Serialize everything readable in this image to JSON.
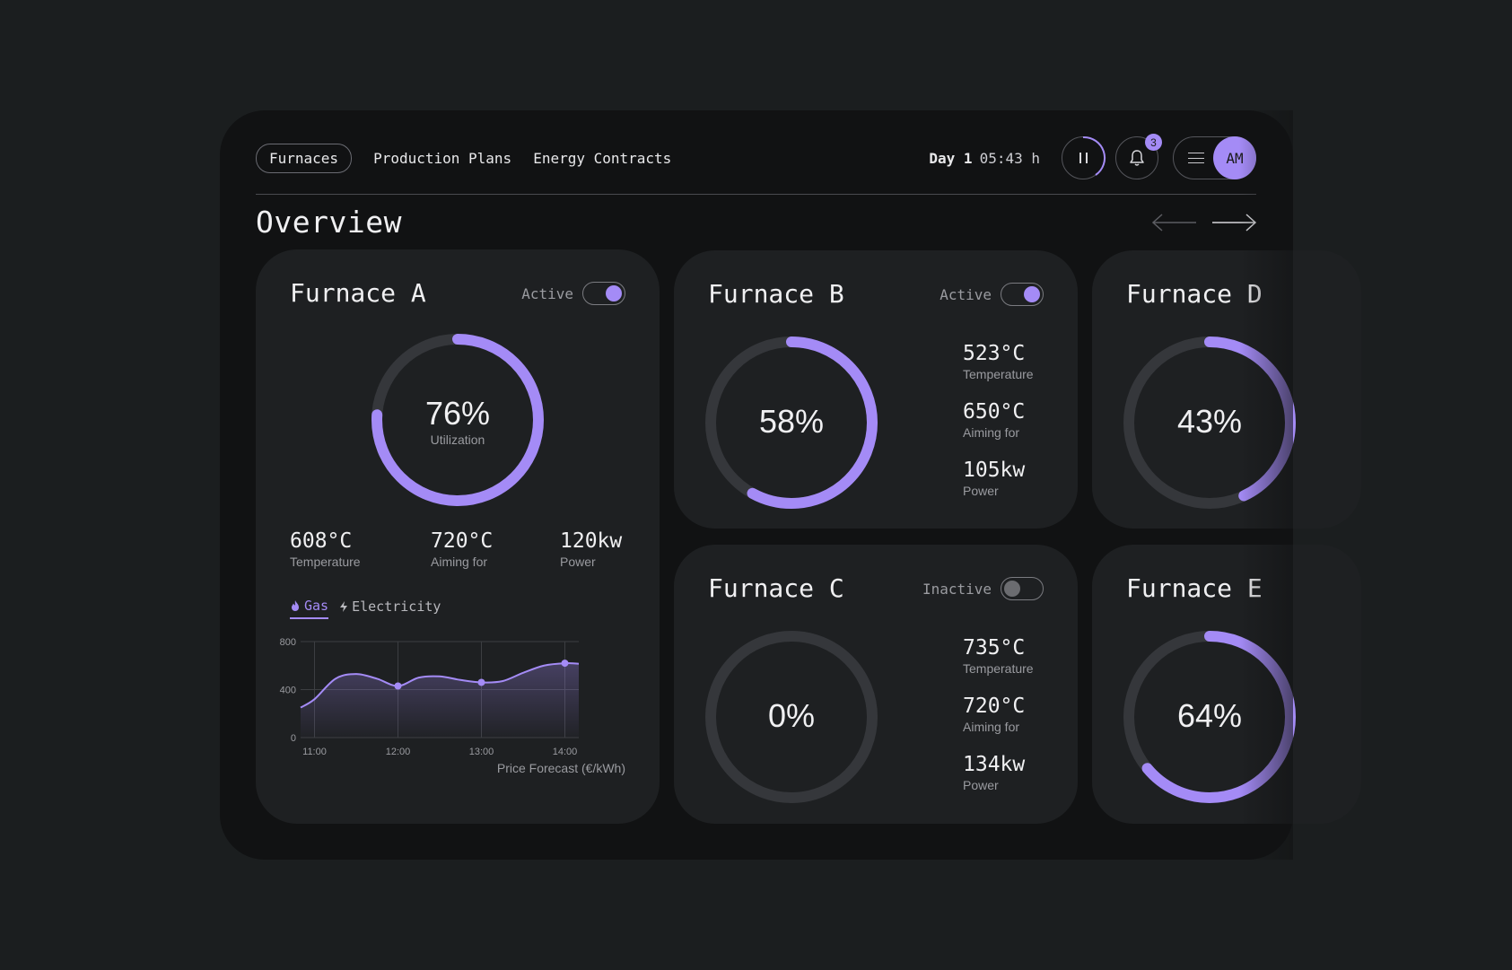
{
  "nav": {
    "tabs": [
      {
        "label": "Furnaces",
        "active": true
      },
      {
        "label": "Production Plans",
        "active": false
      },
      {
        "label": "Energy Contracts",
        "active": false
      }
    ]
  },
  "status": {
    "day": "Day 1",
    "time": "05:43 h",
    "notification_count": "3",
    "avatar_initials": "AM"
  },
  "page": {
    "title": "Overview"
  },
  "colors": {
    "accent": "#a48bf6",
    "track": "#35373b",
    "card": "#1e2022",
    "bg": "#111213"
  },
  "furnaces": [
    {
      "name": "Furnace A",
      "status": "Active",
      "on": true,
      "utilization": 76,
      "utilization_label": "76%",
      "utilization_caption": "Utilization",
      "temperature": "608°C",
      "temperature_label": "Temperature",
      "target": "720°C",
      "target_label": "Aiming for",
      "power": "120kw",
      "power_label": "Power"
    },
    {
      "name": "Furnace B",
      "status": "Active",
      "on": true,
      "utilization": 58,
      "utilization_label": "58%",
      "temperature": "523°C",
      "temperature_label": "Temperature",
      "target": "650°C",
      "target_label": "Aiming for",
      "power": "105kw",
      "power_label": "Power"
    },
    {
      "name": "Furnace C",
      "status": "Inactive",
      "on": false,
      "utilization": 0,
      "utilization_label": "0%",
      "temperature": "735°C",
      "temperature_label": "Temperature",
      "target": "720°C",
      "target_label": "Aiming for",
      "power": "134kw",
      "power_label": "Power"
    },
    {
      "name": "Furnace D",
      "utilization": 43,
      "utilization_label": "43%"
    },
    {
      "name": "Furnace E",
      "utilization": 64,
      "utilization_label": "64%"
    }
  ],
  "energy_tabs": [
    {
      "label": "Gas",
      "icon": "flame-icon",
      "active": true
    },
    {
      "label": "Electricity",
      "icon": "bolt-icon",
      "active": false
    }
  ],
  "chart_data": {
    "type": "area",
    "title": "",
    "xlabel": "Price Forecast (€/kWh)",
    "ylabel": "",
    "x": [
      "10:50",
      "11:00",
      "11:15",
      "11:30",
      "11:45",
      "12:00",
      "12:15",
      "12:30",
      "12:45",
      "13:00",
      "13:15",
      "13:30",
      "13:45",
      "14:00",
      "14:10"
    ],
    "series": [
      {
        "values": [
          250,
          320,
          490,
          530,
          490,
          430,
          500,
          510,
          480,
          460,
          470,
          540,
          600,
          620,
          615
        ]
      }
    ],
    "xticks": [
      "11:00",
      "12:00",
      "13:00",
      "14:00"
    ],
    "yticks": [
      "0",
      "400",
      "800"
    ],
    "ylim": [
      0,
      800
    ],
    "markers": [
      {
        "x": "12:00",
        "y": 430
      },
      {
        "x": "13:00",
        "y": 460
      },
      {
        "x": "14:00",
        "y": 620
      }
    ],
    "grid": true
  }
}
